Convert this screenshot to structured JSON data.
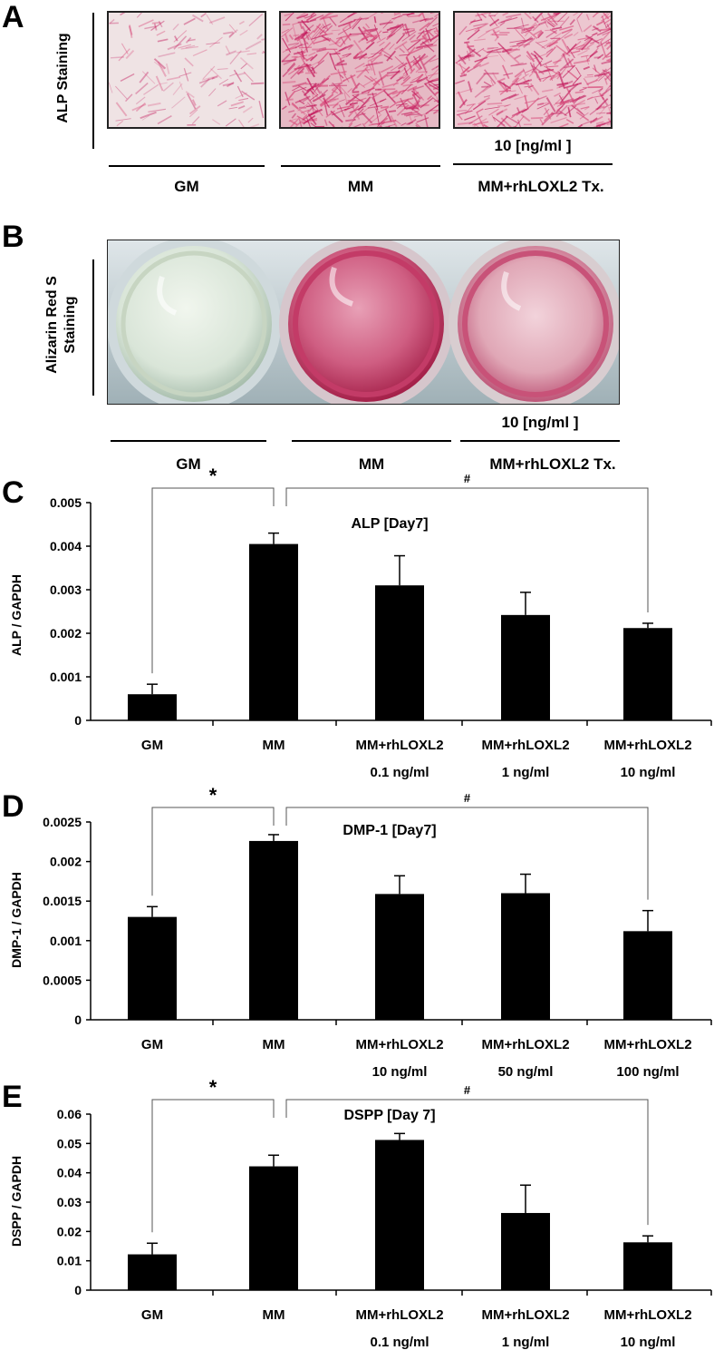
{
  "panels": {
    "a": {
      "letter": "A",
      "ylabel": "ALP Staining",
      "concentration": "10 [ng/ml ]",
      "groups": [
        "GM",
        "MM",
        "MM+rhLOXL2  Tx."
      ]
    },
    "b": {
      "letter": "B",
      "ylabel_line1": "Alizarin Red S",
      "ylabel_line2": "Staining",
      "concentration": "10 [ng/ml ]",
      "groups": [
        "GM",
        "MM",
        "MM+rhLOXL2  Tx."
      ]
    }
  },
  "chart_data": [
    {
      "letter": "C",
      "type": "bar",
      "title": "ALP [Day7]",
      "ylabel": "ALP / GAPDH",
      "categories": [
        "GM",
        "MM",
        "MM+rhLOXL2",
        "MM+rhLOXL2",
        "MM+rhLOXL2"
      ],
      "sublabels": [
        "",
        "",
        "0.1 ng/ml",
        "1 ng/ml",
        "10 ng/ml"
      ],
      "values": [
        0.0006,
        0.00405,
        0.0031,
        0.00242,
        0.00212
      ],
      "errors": [
        0.00023,
        0.00025,
        0.00068,
        0.00052,
        0.00011
      ],
      "ylim": [
        0,
        0.005
      ],
      "yticks": [
        "0",
        "0.001",
        "0.002",
        "0.003",
        "0.004",
        "0.005"
      ],
      "annotations": [
        {
          "symbol": "*",
          "from": 0,
          "to": 1
        },
        {
          "symbol": "#",
          "from": 1,
          "to": 4
        }
      ],
      "color": "#000000"
    },
    {
      "letter": "D",
      "type": "bar",
      "title": "DMP-1 [Day7]",
      "ylabel": "DMP-1 / GAPDH",
      "categories": [
        "GM",
        "MM",
        "MM+rhLOXL2",
        "MM+rhLOXL2",
        "MM+rhLOXL2"
      ],
      "sublabels": [
        "",
        "",
        "10 ng/ml",
        "50 ng/ml",
        "100 ng/ml"
      ],
      "values": [
        0.0013,
        0.00226,
        0.00159,
        0.0016,
        0.00112
      ],
      "errors": [
        0.00013,
        8e-05,
        0.00023,
        0.00024,
        0.00026
      ],
      "ylim": [
        0,
        0.0025
      ],
      "yticks": [
        "0",
        "0.0005",
        "0.001",
        "0.0015",
        "0.002",
        "0.0025"
      ],
      "annotations": [
        {
          "symbol": "*",
          "from": 0,
          "to": 1
        },
        {
          "symbol": "#",
          "from": 1,
          "to": 4
        }
      ],
      "color": "#000000"
    },
    {
      "letter": "E",
      "type": "bar",
      "title": "DSPP [Day 7]",
      "ylabel": "DSPP / GAPDH",
      "categories": [
        "GM",
        "MM",
        "MM+rhLOXL2",
        "MM+rhLOXL2",
        "MM+rhLOXL2"
      ],
      "sublabels": [
        "",
        "",
        "0.1 ng/ml",
        "1 ng/ml",
        "10 ng/ml"
      ],
      "values": [
        0.0122,
        0.0422,
        0.0512,
        0.0263,
        0.0163
      ],
      "errors": [
        0.0038,
        0.0038,
        0.0022,
        0.0095,
        0.0022
      ],
      "ylim": [
        0,
        0.06
      ],
      "yticks": [
        "0",
        "0.01",
        "0.02",
        "0.03",
        "0.04",
        "0.05",
        "0.06"
      ],
      "annotations": [
        {
          "symbol": "*",
          "from": 0,
          "to": 1
        },
        {
          "symbol": "#",
          "from": 1,
          "to": 4
        }
      ],
      "color": "#000000"
    }
  ]
}
